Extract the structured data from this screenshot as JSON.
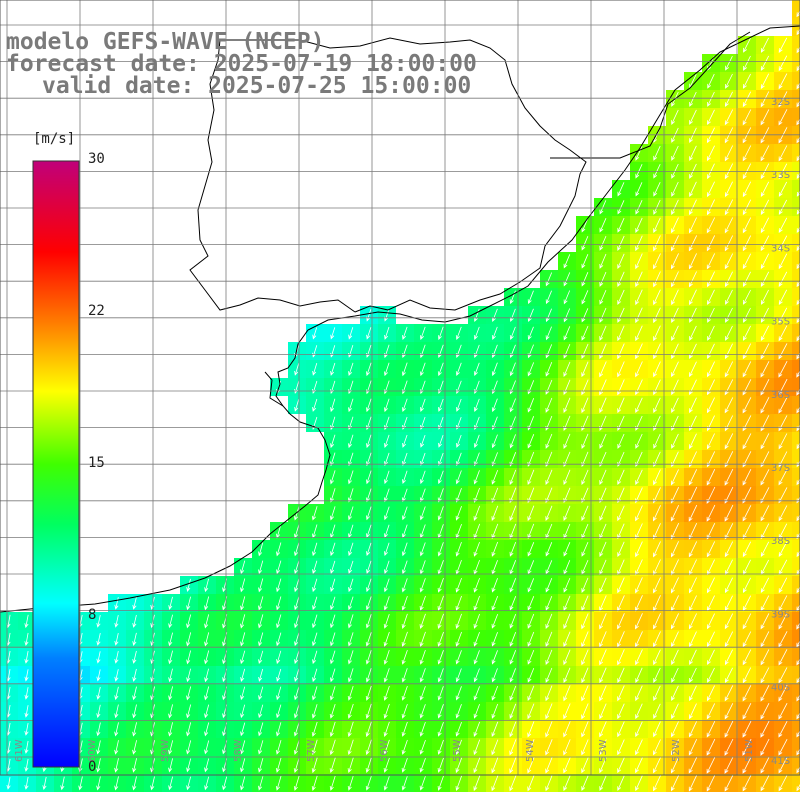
{
  "title": {
    "line1": "modelo GEFS-WAVE (NCEP)",
    "line2": "forecast date: 2025-07-19 18:00:00",
    "line3": "valid date: 2025-07-25 15:00:00"
  },
  "colorbar": {
    "unit": "[m/s]",
    "ticks": [
      "30",
      "22",
      "15",
      "8",
      "0"
    ],
    "tick_values": [
      30,
      22,
      15,
      8,
      0
    ],
    "range": [
      0,
      30
    ]
  },
  "lat_labels": [
    "32S",
    "33S",
    "34S",
    "35S",
    "36S",
    "37S",
    "38S",
    "39S",
    "40S",
    "41S"
  ],
  "lon_labels": [
    "61W",
    "60W",
    "59W",
    "58W",
    "57W",
    "56W",
    "55W",
    "54W",
    "53W",
    "52W",
    "51W"
  ],
  "colors": {
    "land": "#ffffff",
    "grid": "#7a7a7a",
    "coast": "#000000",
    "arrow": "#ffffff"
  }
}
